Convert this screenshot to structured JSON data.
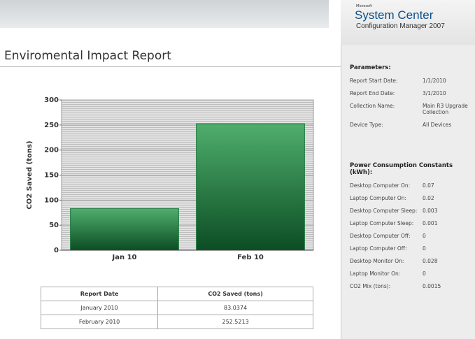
{
  "header": {
    "vendor": "Microsoft",
    "product": "System Center",
    "subtitle": "Configuration Manager 2007"
  },
  "title": "Enviromental Impact Report",
  "chart_data": {
    "type": "bar",
    "y_label": "CO2 Saved (tons)",
    "categories": [
      "Jan 10",
      "Feb 10"
    ],
    "values": [
      83.0374,
      252.5213
    ],
    "color": "#1e7a3e",
    "ylim": [
      0,
      300
    ],
    "yticks": [
      0,
      50,
      100,
      150,
      200,
      250,
      300
    ],
    "grid": true
  },
  "table": {
    "columns": [
      "Report Date",
      "CO2 Saved (tons)"
    ],
    "rows": [
      [
        "January 2010",
        "83.0374"
      ],
      [
        "February 2010",
        "252.5213"
      ]
    ]
  },
  "parameters": {
    "title": "Parameters:",
    "rows": [
      [
        "Report Start Date:",
        "1/1/2010"
      ],
      [
        "Report End Date:",
        "3/1/2010"
      ],
      [
        "Collection Name:",
        "Main R3 Upgrade Collection"
      ],
      [
        "Device Type:",
        "All Devices"
      ]
    ]
  },
  "constants": {
    "title": "Power Consumption Constants (kWh):",
    "rows": [
      [
        "Desktop Computer On:",
        "0.07"
      ],
      [
        "Laptop Computer On:",
        "0.02"
      ],
      [
        "Desktop Computer Sleep:",
        "0.003"
      ],
      [
        "Laptop Computer Sleep:",
        "0.001"
      ],
      [
        "Desktop Computer Off:",
        "0"
      ],
      [
        "Laptop Computer Off:",
        "0"
      ],
      [
        "Desktop Monitor On:",
        "0.028"
      ],
      [
        "Laptop Monitor On:",
        "0"
      ],
      [
        "CO2 Mix (tons):",
        "0.0015"
      ]
    ]
  }
}
